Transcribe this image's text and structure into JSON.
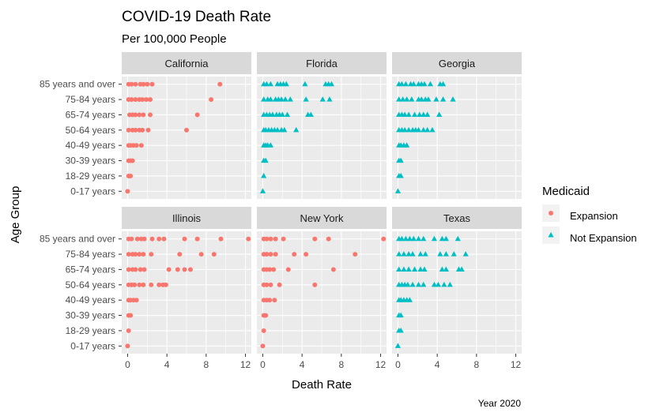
{
  "chart_data": {
    "type": "scatter",
    "title": "COVID-19 Death Rate",
    "subtitle": "Per 100,000 People",
    "xlabel": "Death Rate",
    "ylabel": "Age Group",
    "caption": "Year 2020",
    "xlim": [
      -0.6,
      12.6
    ],
    "x_ticks": [
      0,
      4,
      8,
      12
    ],
    "x_tick_labels": [
      "0",
      "4",
      "8",
      "12"
    ],
    "y_categories": [
      "85 years and over",
      "75-84 years",
      "65-74 years",
      "50-64 years",
      "40-49 years",
      "30-39 years",
      "18-29 years",
      "0-17 years"
    ],
    "grid": true,
    "legend": {
      "title": "Medicaid",
      "placement": "right",
      "entries": [
        {
          "label": "Expansion",
          "color": "#F8766D",
          "shape": "circle"
        },
        {
          "label": "Not Expansion",
          "color": "#00BFC4",
          "shape": "triangle"
        }
      ]
    },
    "facets": [
      {
        "name": "California",
        "group": "Expansion",
        "points": {
          "85 years and over": [
            0.1,
            0.4,
            0.8,
            1.3,
            1.6,
            2.0,
            2.5,
            9.4
          ],
          "75-84 years": [
            0.1,
            0.4,
            0.8,
            1.2,
            1.5,
            1.9,
            2.3,
            8.5
          ],
          "65-74 years": [
            0.2,
            0.5,
            0.8,
            1.2,
            1.6,
            2.3,
            7.1
          ],
          "50-64 years": [
            0.1,
            0.5,
            0.8,
            1.2,
            1.5,
            2.1,
            6.0
          ],
          "40-49 years": [
            0.1,
            0.3,
            0.6,
            0.9,
            1.4
          ],
          "30-39 years": [
            0.1,
            0.3,
            0.5
          ],
          "18-29 years": [
            0.1,
            0.3
          ],
          "0-17 years": [
            0.0
          ]
        }
      },
      {
        "name": "Florida",
        "group": "Not Expansion",
        "points": {
          "85 years and over": [
            0.1,
            0.4,
            0.8,
            1.5,
            1.8,
            2.1,
            2.4,
            4.3,
            6.4,
            6.7,
            7.0
          ],
          "75-84 years": [
            0.1,
            0.5,
            0.8,
            1.3,
            1.6,
            1.9,
            2.3,
            2.8,
            4.4,
            6.1,
            6.8
          ],
          "65-74 years": [
            0.1,
            0.4,
            0.7,
            1.0,
            1.4,
            1.7,
            2.0,
            2.5,
            4.6,
            4.9
          ],
          "50-64 years": [
            0.1,
            0.3,
            0.6,
            0.9,
            1.2,
            1.5,
            1.9,
            2.2,
            3.4
          ],
          "40-49 years": [
            0.1,
            0.3,
            0.5,
            0.8
          ],
          "30-39 years": [
            0.1,
            0.3
          ],
          "18-29 years": [
            0.1
          ],
          "0-17 years": [
            0.0
          ]
        }
      },
      {
        "name": "Georgia",
        "group": "Not Expansion",
        "points": {
          "85 years and over": [
            0.1,
            0.4,
            0.8,
            1.3,
            1.6,
            2.1,
            2.4,
            2.7,
            3.3,
            4.3,
            4.6
          ],
          "75-84 years": [
            0.1,
            0.5,
            0.9,
            1.4,
            2.1,
            2.4,
            2.8,
            3.1,
            3.9,
            4.6,
            5.6
          ],
          "65-74 years": [
            0.1,
            0.4,
            0.7,
            1.1,
            1.7,
            2.2,
            2.6,
            3.0,
            4.2
          ],
          "50-64 years": [
            0.1,
            0.4,
            0.7,
            1.1,
            1.5,
            1.8,
            2.1,
            2.6,
            3.0,
            3.5
          ],
          "40-49 years": [
            0.1,
            0.3,
            0.6,
            0.9
          ],
          "30-39 years": [
            0.1,
            0.3
          ],
          "18-29 years": [
            0.1,
            0.3
          ],
          "0-17 years": [
            0.0
          ]
        }
      },
      {
        "name": "Illinois",
        "group": "Expansion",
        "points": {
          "85 years and over": [
            0.1,
            0.4,
            1.0,
            1.4,
            1.7,
            2.5,
            3.2,
            3.7,
            5.8,
            7.1,
            9.5,
            12.3
          ],
          "75-84 years": [
            0.1,
            0.5,
            0.8,
            1.2,
            1.6,
            2.4,
            5.3,
            7.5,
            8.8
          ],
          "65-74 years": [
            0.1,
            0.5,
            0.8,
            1.3,
            1.7,
            4.2,
            5.1,
            5.8,
            6.4
          ],
          "50-64 years": [
            0.1,
            0.4,
            0.7,
            1.2,
            1.6,
            2.4,
            3.2,
            3.6,
            3.9
          ],
          "40-49 years": [
            0.1,
            0.3,
            0.6,
            0.9
          ],
          "30-39 years": [
            0.1,
            0.3
          ],
          "18-29 years": [
            0.1
          ],
          "0-17 years": [
            0.0
          ]
        }
      },
      {
        "name": "New York",
        "group": "Expansion",
        "points": {
          "85 years and over": [
            0.1,
            0.4,
            0.8,
            1.3,
            2.1,
            5.3,
            6.7,
            12.3
          ],
          "75-84 years": [
            0.1,
            0.4,
            0.8,
            1.3,
            3.2,
            4.4,
            9.4
          ],
          "65-74 years": [
            0.1,
            0.4,
            0.7,
            1.1,
            2.6,
            7.2
          ],
          "50-64 years": [
            0.1,
            0.4,
            0.8,
            1.7,
            5.3
          ],
          "40-49 years": [
            0.1,
            0.4,
            0.7,
            1.2
          ],
          "30-39 years": [
            0.1,
            0.3
          ],
          "18-29 years": [
            0.1
          ],
          "0-17 years": [
            0.0
          ]
        }
      },
      {
        "name": "Texas",
        "group": "Not Expansion",
        "points": {
          "85 years and over": [
            0.1,
            0.4,
            0.8,
            1.2,
            1.6,
            2.1,
            2.6,
            3.7,
            4.5,
            4.9,
            6.1
          ],
          "75-84 years": [
            0.1,
            0.6,
            1.1,
            1.5,
            2.3,
            2.8,
            4.3,
            4.9,
            5.7,
            6.9
          ],
          "65-74 years": [
            0.1,
            0.6,
            1.1,
            1.7,
            2.3,
            2.7,
            4.5,
            4.9,
            6.2,
            6.5
          ],
          "50-64 years": [
            0.1,
            0.4,
            0.7,
            1.0,
            1.5,
            2.1,
            2.6,
            3.7,
            4.1,
            4.7,
            5.3
          ],
          "40-49 years": [
            0.1,
            0.3,
            0.6,
            0.9,
            1.2
          ],
          "30-39 years": [
            0.1,
            0.3
          ],
          "18-29 years": [
            0.1,
            0.3
          ],
          "0-17 years": [
            0.0
          ]
        }
      }
    ]
  },
  "colors": {
    "panel_bg": "#EBEBEB",
    "strip_bg": "#D9D9D9",
    "grid": "#FFFFFF",
    "expansion": "#F8766D",
    "not_expansion": "#00BFC4"
  }
}
